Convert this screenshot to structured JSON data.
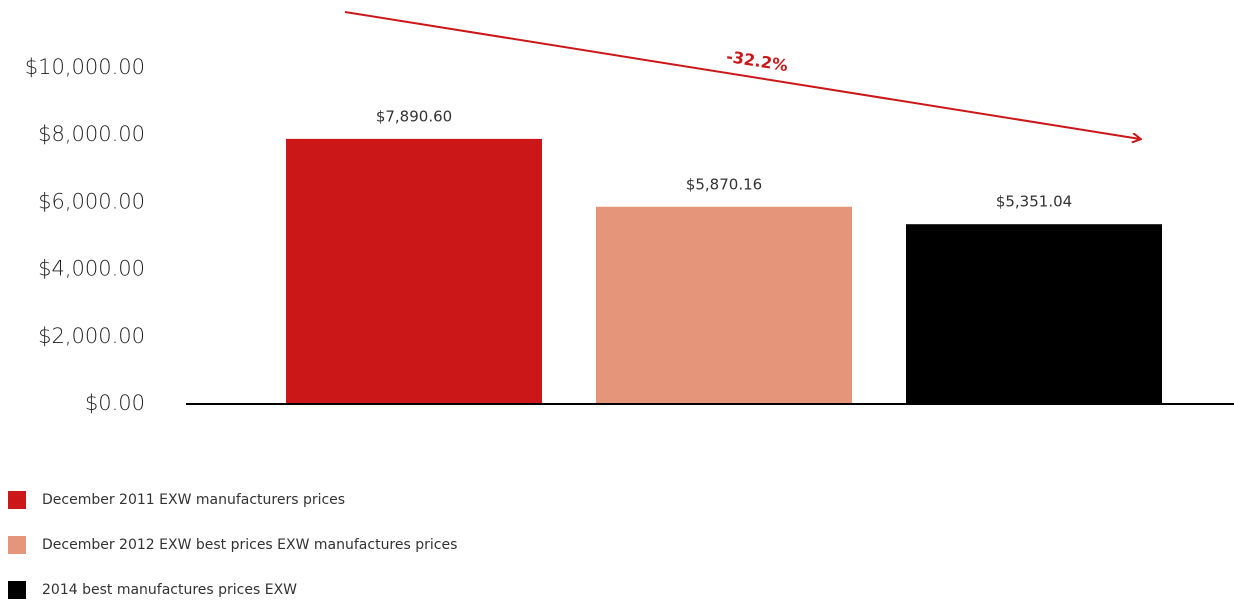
{
  "chart_data": {
    "type": "bar",
    "categories": [
      null
    ],
    "series": [
      {
        "name": "December 2011 EXW manufacturers prices",
        "color": "#cc1719",
        "values": [
          7890.6
        ],
        "value_labels": [
          "$7,890.60"
        ]
      },
      {
        "name": "December 2012 EXW best prices EXW manufactures prices",
        "color": "#e5967a",
        "values": [
          5870.16
        ],
        "value_labels": [
          "$5,870.16"
        ]
      },
      {
        "name": "2014 best manufactures prices EXW",
        "color": "#000000",
        "values": [
          5351.04
        ],
        "value_labels": [
          "$5,351.04"
        ]
      }
    ],
    "ylim": [
      0,
      10000
    ],
    "yticks": [
      {
        "value": 0,
        "label": "$0.00"
      },
      {
        "value": 2000,
        "label": "$2,000.00"
      },
      {
        "value": 4000,
        "label": "$4,000.00"
      },
      {
        "value": 6000,
        "label": "$6,000.00"
      },
      {
        "value": 8000,
        "label": "$8,000.00"
      },
      {
        "value": 10000,
        "label": "$10,000.00"
      }
    ],
    "grid": false,
    "legend": "bottom-left",
    "annotation": "-32.2%"
  }
}
